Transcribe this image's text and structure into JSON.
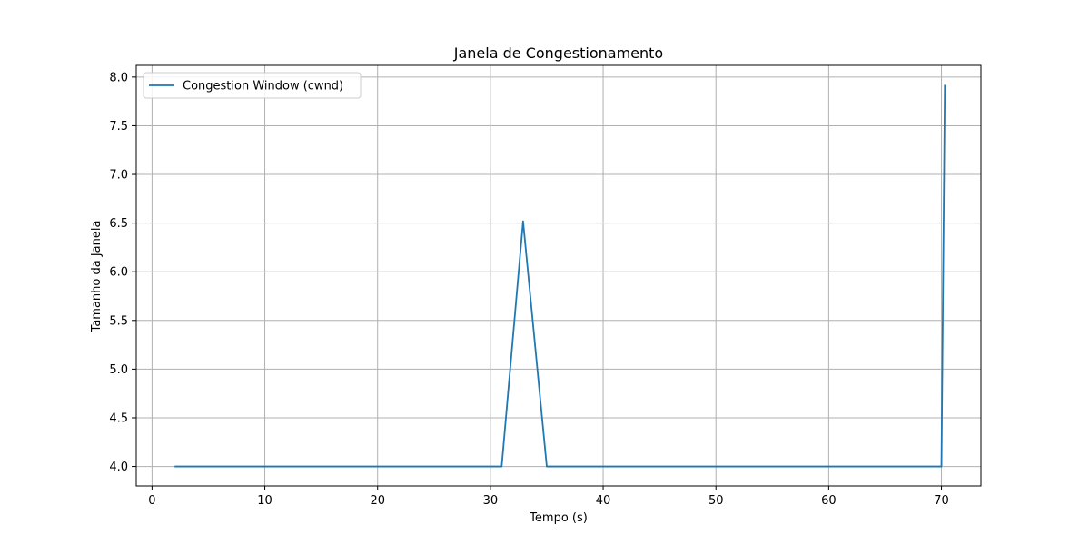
{
  "chart_data": {
    "type": "line",
    "title": "Janela de Congestionamento",
    "xlabel": "Tempo (s)",
    "ylabel": "Tamanho da Janela",
    "xlim": [
      -1.4,
      73.5
    ],
    "ylim": [
      3.8,
      8.12
    ],
    "xticks": [
      0,
      10,
      20,
      30,
      40,
      50,
      60,
      70
    ],
    "yticks": [
      4.0,
      4.5,
      5.0,
      5.5,
      6.0,
      6.5,
      7.0,
      7.5,
      8.0
    ],
    "grid": true,
    "legend_position": "top-left",
    "series": [
      {
        "name": "Congestion Window (cwnd)",
        "color": "#1f77b4",
        "x": [
          2.0,
          31.0,
          32.9,
          35.0,
          70.0,
          70.3
        ],
        "y": [
          4.0,
          4.0,
          6.52,
          4.0,
          4.0,
          7.92
        ]
      }
    ]
  }
}
